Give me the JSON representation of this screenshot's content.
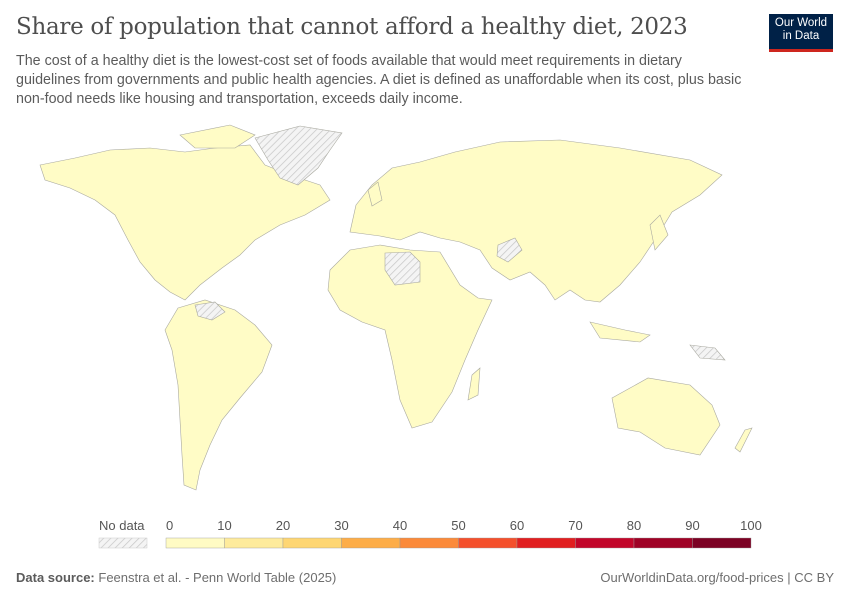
{
  "header": {
    "title": "Share of population that cannot afford a healthy diet, 2023",
    "subtitle": "The cost of a healthy diet is the lowest-cost set of foods available that would meet requirements in dietary guidelines from governments and public health agencies. A diet is defined as unaffordable when its cost, plus basic non-food needs like housing and transportation, exceeds daily income.",
    "logo": "Our World in Data"
  },
  "legend": {
    "no_data_label": "No data",
    "ticks": [
      "0",
      "10",
      "20",
      "30",
      "40",
      "50",
      "60",
      "70",
      "80",
      "90",
      "100"
    ],
    "colors": [
      "#fffbc4",
      "#feeb9c",
      "#fed673",
      "#fdad48",
      "#fb8a3a",
      "#f4502c",
      "#e11f20",
      "#c2062a",
      "#9f0226",
      "#7c0224"
    ],
    "no_data_color": "#e8e8e8"
  },
  "chart_data": {
    "type": "choropleth",
    "year": "2023",
    "unit": "%",
    "scale": [
      0,
      100
    ],
    "bin_width": 10,
    "observed_bin": "0-10 for all countries with data",
    "no_data_regions": [
      "Greenland",
      "Libya",
      "Afghanistan",
      "Venezuela",
      "Papua New Guinea"
    ]
  },
  "footer": {
    "source_label": "Data source:",
    "source": "Feenstra et al. - Penn World Table (2025)",
    "url_license": "OurWorldinData.org/food-prices | CC BY"
  }
}
